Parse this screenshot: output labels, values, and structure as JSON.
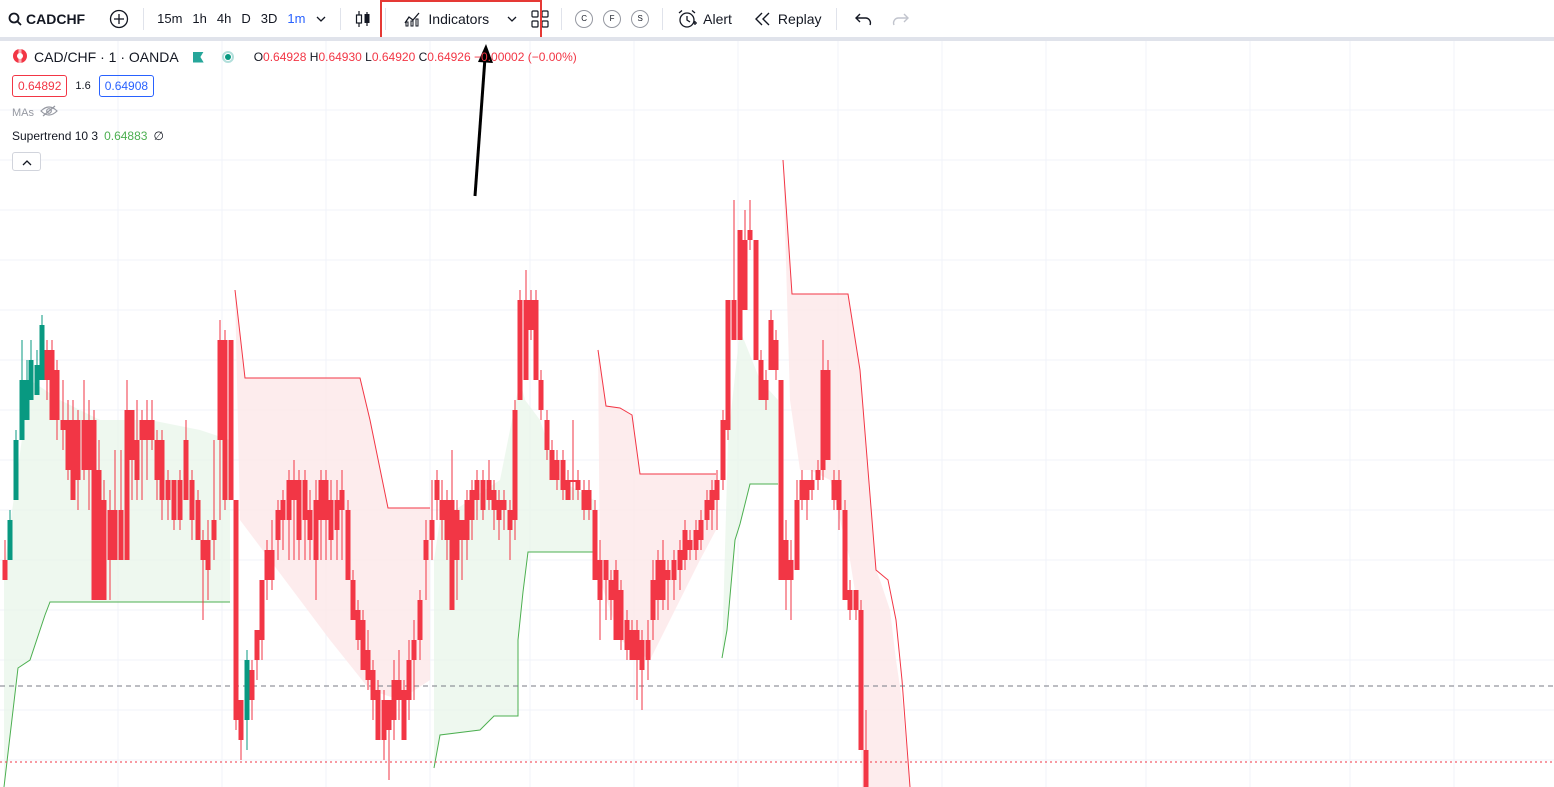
{
  "toolbar": {
    "symbol": "CADCHF",
    "timeframes": [
      "15m",
      "1h",
      "4h",
      "D",
      "3D",
      "1m"
    ],
    "active_timeframe": "1m",
    "indicators_label": "Indicators",
    "alert_label": "Alert",
    "replay_label": "Replay",
    "circle_buttons": [
      "C",
      "F",
      "S"
    ]
  },
  "legend": {
    "title": "CAD/CHF · 1 · OANDA",
    "open_key": "O",
    "open": "0.64928",
    "high_key": "H",
    "high": "0.64930",
    "low_key": "L",
    "low": "0.64920",
    "close_key": "C",
    "close": "0.64926",
    "change": "−0.00002 (−0.00%)"
  },
  "quote": {
    "sell": "0.64892",
    "spread": "1.6",
    "buy": "0.64908"
  },
  "mas_label": "MAs",
  "supertrend": {
    "name": "Supertrend 10 3",
    "value": "0.64883",
    "extra": "∅"
  },
  "colors": {
    "up": "#089981",
    "down": "#f23645",
    "accent": "#2962ff",
    "highlight": "#e53935"
  },
  "icons": [
    "search-icon",
    "add-symbol-icon",
    "chevron-down-icon",
    "candles-icon",
    "indicators-icon",
    "layout-icon",
    "alert-icon",
    "replay-icon",
    "undo-icon",
    "redo-icon",
    "eye-off-icon",
    "chevron-up-icon"
  ]
}
